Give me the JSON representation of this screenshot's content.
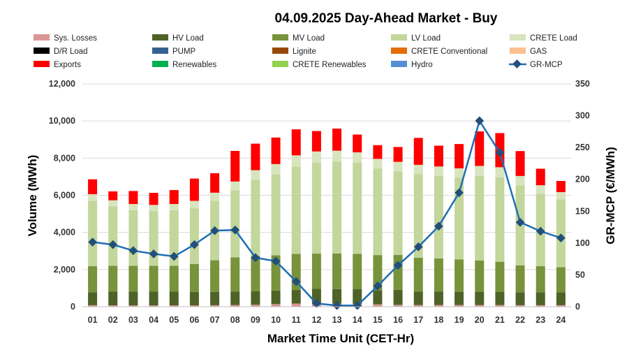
{
  "chart_data": {
    "type": "bar",
    "title": "04.09.2025  Day-Ahead Market - Buy",
    "xlabel": "Market Time Unit (CET-Hr)",
    "ylabel": "Volume (MWh)",
    "y2label": "GR-MCP (€/MWh)",
    "ylim": [
      0,
      12000
    ],
    "y2lim": [
      0,
      350
    ],
    "yticks": [
      "0",
      "2,000",
      "4,000",
      "6,000",
      "8,000",
      "10,000",
      "12,000"
    ],
    "y2ticks": [
      "0",
      "50",
      "100",
      "150",
      "200",
      "250",
      "300",
      "350"
    ],
    "grid": true,
    "legend_position": "top",
    "categories": [
      "01",
      "02",
      "03",
      "04",
      "05",
      "06",
      "07",
      "08",
      "09",
      "10",
      "11",
      "12",
      "13",
      "14",
      "15",
      "16",
      "17",
      "18",
      "19",
      "20",
      "21",
      "22",
      "23",
      "24"
    ],
    "legend": [
      {
        "name": "Sys. Losses",
        "color": "#da9694",
        "kind": "bar"
      },
      {
        "name": "HV Load",
        "color": "#4f6228",
        "kind": "bar"
      },
      {
        "name": "MV Load",
        "color": "#77933c",
        "kind": "bar"
      },
      {
        "name": "LV Load",
        "color": "#c3d69b",
        "kind": "bar"
      },
      {
        "name": "CRETE Load",
        "color": "#d7e4bd",
        "kind": "bar"
      },
      {
        "name": "D/R Load",
        "color": "#000000",
        "kind": "bar"
      },
      {
        "name": "PUMP",
        "color": "#366092",
        "kind": "bar"
      },
      {
        "name": "Lignite",
        "color": "#974806",
        "kind": "bar"
      },
      {
        "name": "CRETE Conventional",
        "color": "#e46c0a",
        "kind": "bar"
      },
      {
        "name": "GAS",
        "color": "#fac090",
        "kind": "bar"
      },
      {
        "name": "Exports",
        "color": "#ff0000",
        "kind": "bar"
      },
      {
        "name": "Renewables",
        "color": "#00b050",
        "kind": "bar"
      },
      {
        "name": "CRETE Renewables",
        "color": "#92d050",
        "kind": "bar"
      },
      {
        "name": "Hydro",
        "color": "#558ed5",
        "kind": "bar"
      },
      {
        "name": "GR-MCP",
        "color": "#1f6fb4",
        "kind": "line"
      }
    ],
    "series": [
      {
        "name": "Sys. Losses",
        "color": "#da9694",
        "axis": "left",
        "values": [
          80,
          70,
          70,
          70,
          70,
          70,
          80,
          90,
          110,
          140,
          170,
          170,
          160,
          150,
          130,
          100,
          90,
          90,
          90,
          90,
          90,
          80,
          80,
          80
        ]
      },
      {
        "name": "HV Load",
        "color": "#4f6228",
        "axis": "left",
        "values": [
          700,
          740,
          740,
          740,
          740,
          730,
          720,
          720,
          720,
          730,
          730,
          790,
          790,
          790,
          750,
          810,
          720,
          720,
          700,
          700,
          700,
          700,
          700,
          700
        ]
      },
      {
        "name": "MV Load",
        "color": "#77933c",
        "axis": "left",
        "values": [
          1400,
          1390,
          1390,
          1390,
          1390,
          1500,
          1700,
          1850,
          1900,
          1900,
          1950,
          1900,
          1920,
          1910,
          1900,
          1880,
          1830,
          1790,
          1760,
          1700,
          1630,
          1450,
          1400,
          1350
        ]
      },
      {
        "name": "LV Load",
        "color": "#c3d69b",
        "axis": "left",
        "values": [
          3500,
          3200,
          3000,
          2950,
          3000,
          3000,
          3200,
          3600,
          4100,
          4350,
          4700,
          4900,
          4950,
          4900,
          4650,
          4500,
          4500,
          4450,
          4400,
          4550,
          4550,
          4300,
          3900,
          3650
        ]
      },
      {
        "name": "CRETE Load",
        "color": "#d7e4bd",
        "axis": "left",
        "values": [
          380,
          330,
          330,
          330,
          330,
          400,
          440,
          480,
          520,
          560,
          600,
          600,
          580,
          560,
          530,
          510,
          500,
          500,
          500,
          540,
          540,
          510,
          460,
          390
        ]
      },
      {
        "name": "Exports",
        "color": "#ff0000",
        "axis": "left",
        "values": [
          800,
          480,
          700,
          650,
          750,
          1200,
          1050,
          1650,
          1430,
          1430,
          1400,
          1100,
          1190,
          960,
          740,
          800,
          1450,
          1120,
          1310,
          1860,
          1840,
          1340,
          890,
          600
        ]
      },
      {
        "name": "GR-MCP",
        "color": "#1f6fb4",
        "axis": "right",
        "type": "line",
        "values": [
          101.5,
          97.5,
          88,
          83,
          79,
          97.5,
          119.5,
          120.5,
          77,
          71.5,
          39.5,
          5,
          2,
          2,
          32.5,
          65,
          94,
          126.5,
          179,
          292,
          242,
          132.5,
          118.5,
          108
        ]
      }
    ]
  }
}
